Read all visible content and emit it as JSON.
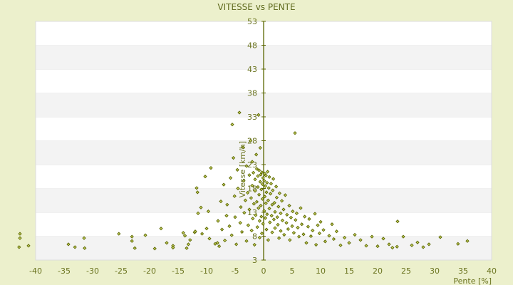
{
  "chart_data": {
    "type": "scatter",
    "title": "VITESSE vs PENTE",
    "xlabel": "Pente [%]",
    "ylabel": "Vitesse [km/h]",
    "xlim": [
      -40,
      40
    ],
    "ylim": [
      3,
      53
    ],
    "x_ticks": [
      "-40",
      "-35",
      "-30",
      "-25",
      "-20",
      "-15",
      "-10",
      "-5",
      "0",
      "5",
      "10",
      "15",
      "20",
      "25",
      "30",
      "35",
      "40"
    ],
    "y_ticks": [
      "3",
      "8",
      "13",
      "18",
      "23",
      "28",
      "33",
      "38",
      "43",
      "48",
      "53"
    ],
    "grid": "horizontal alternating bands",
    "colors": {
      "background": "#ecf0cc",
      "band": "#f3f3f3",
      "point": "#5a6600",
      "axis": "#5a6600"
    },
    "points": [
      [
        -42.9,
        5.7
      ],
      [
        -42.75,
        8.5
      ],
      [
        -42.75,
        7.6
      ],
      [
        -41.25,
        6.0
      ],
      [
        -34.25,
        6.3
      ],
      [
        -33.1,
        5.7
      ],
      [
        -31.5,
        7.6
      ],
      [
        -31.4,
        5.5
      ],
      [
        -25.4,
        8.5
      ],
      [
        -23.1,
        7.9
      ],
      [
        -23.1,
        7.0
      ],
      [
        -22.6,
        5.5
      ],
      [
        -20.75,
        8.2
      ],
      [
        -19.1,
        5.4
      ],
      [
        -18,
        9.6
      ],
      [
        -17,
        6.6
      ],
      [
        -15.9,
        6.0
      ],
      [
        -15.9,
        5.6
      ],
      [
        -14.1,
        8.7
      ],
      [
        -13.8,
        8.1
      ],
      [
        -13.5,
        5.5
      ],
      [
        -13.2,
        6.3
      ],
      [
        -12.9,
        7.2
      ],
      [
        -12.1,
        8.8
      ],
      [
        -12.0,
        9.0
      ],
      [
        -11.75,
        18.1
      ],
      [
        -11.6,
        17.2
      ],
      [
        -11.5,
        12.8
      ],
      [
        -11.0,
        14.0
      ],
      [
        -10.8,
        8.5
      ],
      [
        -10.25,
        20.5
      ],
      [
        -10.0,
        9.6
      ],
      [
        -9.7,
        13.2
      ],
      [
        -9.5,
        7.5
      ],
      [
        -9.25,
        22.3
      ],
      [
        -8.5,
        6.4
      ],
      [
        -8.1,
        6.6
      ],
      [
        -8.0,
        11.2
      ],
      [
        -7.8,
        5.9
      ],
      [
        -7.5,
        15.3
      ],
      [
        -7.3,
        9.4
      ],
      [
        -7.0,
        18.8
      ],
      [
        -6.8,
        7.1
      ],
      [
        -6.5,
        12.3
      ],
      [
        -6.4,
        14.6
      ],
      [
        -6.0,
        10.1
      ],
      [
        -5.8,
        20.2
      ],
      [
        -5.6,
        8.2
      ],
      [
        -5.5,
        31.4
      ],
      [
        -5.3,
        24.4
      ],
      [
        -5.1,
        16.4
      ],
      [
        -5.0,
        12.0
      ],
      [
        -4.8,
        6.3
      ],
      [
        -4.6,
        21.9
      ],
      [
        -4.5,
        18.0
      ],
      [
        -4.25,
        33.9
      ],
      [
        -4.1,
        10.8
      ],
      [
        -4.0,
        14.1
      ],
      [
        -3.8,
        8.9
      ],
      [
        -3.6,
        26.6
      ],
      [
        -3.5,
        19.6
      ],
      [
        -3.4,
        12.9
      ],
      [
        -3.2,
        15.5
      ],
      [
        -3.0,
        22.7
      ],
      [
        -3.0,
        7.0
      ],
      [
        -2.8,
        17.1
      ],
      [
        -2.7,
        10.3
      ],
      [
        -2.5,
        20.8
      ],
      [
        -2.5,
        13.6
      ],
      [
        -2.3,
        28.0
      ],
      [
        -2.2,
        16.0
      ],
      [
        -2.1,
        9.2
      ],
      [
        -2.0,
        23.6
      ],
      [
        -2.0,
        18.6
      ],
      [
        -1.9,
        11.7
      ],
      [
        -1.8,
        21.3
      ],
      [
        -1.7,
        14.8
      ],
      [
        -1.6,
        6.2
      ],
      [
        -1.5,
        19.9
      ],
      [
        -1.5,
        17.5
      ],
      [
        -1.4,
        12.4
      ],
      [
        -1.3,
        25.1
      ],
      [
        -1.2,
        22.1
      ],
      [
        -1.2,
        15.2
      ],
      [
        -1.1,
        9.9
      ],
      [
        -1.0,
        20.6
      ],
      [
        -1.0,
        18.3
      ],
      [
        -0.9,
        33.4
      ],
      [
        -0.9,
        13.9
      ],
      [
        -0.8,
        21.8
      ],
      [
        -0.8,
        16.7
      ],
      [
        -0.7,
        11.2
      ],
      [
        -0.7,
        7.7
      ],
      [
        -0.6,
        19.4
      ],
      [
        -0.6,
        26.5
      ],
      [
        -0.5,
        14.4
      ],
      [
        -0.5,
        20.9
      ],
      [
        -0.4,
        17.8
      ],
      [
        -0.4,
        12.1
      ],
      [
        -0.3,
        21.4
      ],
      [
        -0.3,
        8.6
      ],
      [
        -0.2,
        18.9
      ],
      [
        -0.2,
        15.8
      ],
      [
        -0.1,
        20.2
      ],
      [
        -0.1,
        10.6
      ],
      [
        0.1,
        19.6
      ],
      [
        0.1,
        13.3
      ],
      [
        0.2,
        21.1
      ],
      [
        0.2,
        16.3
      ],
      [
        0.3,
        18.5
      ],
      [
        0.3,
        11.8
      ],
      [
        0.4,
        20.7
      ],
      [
        0.4,
        14.9
      ],
      [
        0.5,
        9.4
      ],
      [
        0.5,
        17.2
      ],
      [
        0.6,
        19.2
      ],
      [
        0.6,
        12.6
      ],
      [
        0.7,
        21.5
      ],
      [
        0.8,
        15.5
      ],
      [
        0.8,
        7.2
      ],
      [
        0.9,
        18.1
      ],
      [
        1.0,
        13.8
      ],
      [
        1.0,
        20.4
      ],
      [
        1.1,
        10.9
      ],
      [
        1.2,
        16.9
      ],
      [
        1.3,
        19.0
      ],
      [
        1.4,
        12.3
      ],
      [
        1.5,
        14.6
      ],
      [
        1.5,
        8.8
      ],
      [
        1.6,
        17.6
      ],
      [
        1.7,
        20.0
      ],
      [
        1.8,
        11.5
      ],
      [
        1.9,
        15.0
      ],
      [
        2.0,
        13.1
      ],
      [
        2.0,
        9.7
      ],
      [
        2.2,
        18.4
      ],
      [
        2.3,
        16.1
      ],
      [
        2.4,
        12.0
      ],
      [
        2.5,
        10.4
      ],
      [
        2.6,
        14.2
      ],
      [
        2.7,
        7.6
      ],
      [
        2.8,
        17.0
      ],
      [
        3.0,
        12.8
      ],
      [
        3.0,
        9.1
      ],
      [
        3.2,
        15.4
      ],
      [
        3.3,
        11.3
      ],
      [
        3.5,
        13.6
      ],
      [
        3.6,
        8.3
      ],
      [
        3.8,
        16.6
      ],
      [
        4.0,
        10.8
      ],
      [
        4.1,
        12.5
      ],
      [
        4.3,
        9.5
      ],
      [
        4.5,
        14.4
      ],
      [
        4.6,
        7.2
      ],
      [
        4.8,
        11.9
      ],
      [
        5.0,
        10.1
      ],
      [
        5.1,
        13.2
      ],
      [
        5.3,
        8.7
      ],
      [
        5.5,
        29.6
      ],
      [
        5.6,
        11.4
      ],
      [
        5.8,
        12.8
      ],
      [
        6.0,
        9.8
      ],
      [
        6.2,
        7.9
      ],
      [
        6.5,
        13.9
      ],
      [
        6.7,
        10.5
      ],
      [
        7.0,
        8.4
      ],
      [
        7.2,
        12.1
      ],
      [
        7.5,
        6.6
      ],
      [
        7.8,
        10.0
      ],
      [
        8.0,
        11.6
      ],
      [
        8.3,
        8.0
      ],
      [
        8.6,
        9.2
      ],
      [
        9.0,
        12.7
      ],
      [
        9.2,
        6.2
      ],
      [
        9.5,
        10.3
      ],
      [
        9.8,
        8.6
      ],
      [
        10.0,
        11.0
      ],
      [
        10.5,
        9.3
      ],
      [
        10.8,
        6.9
      ],
      [
        11.5,
        8.1
      ],
      [
        12.0,
        10.5
      ],
      [
        12.3,
        7.4
      ],
      [
        12.8,
        9.0
      ],
      [
        13.5,
        6.1
      ],
      [
        14.2,
        7.7
      ],
      [
        15.0,
        6.6
      ],
      [
        16.0,
        8.3
      ],
      [
        17.0,
        7.2
      ],
      [
        18.0,
        6.0
      ],
      [
        19.0,
        7.9
      ],
      [
        20.0,
        5.9
      ],
      [
        21.0,
        7.5
      ],
      [
        22.0,
        6.3
      ],
      [
        22.6,
        5.6
      ],
      [
        23.5,
        11.1
      ],
      [
        23.4,
        5.8
      ],
      [
        24.5,
        7.9
      ],
      [
        26.0,
        6.1
      ],
      [
        27.0,
        6.7
      ],
      [
        28.0,
        5.7
      ],
      [
        29.0,
        6.3
      ],
      [
        31.0,
        7.8
      ],
      [
        34.1,
        6.4
      ],
      [
        35.75,
        7.0
      ]
    ]
  }
}
